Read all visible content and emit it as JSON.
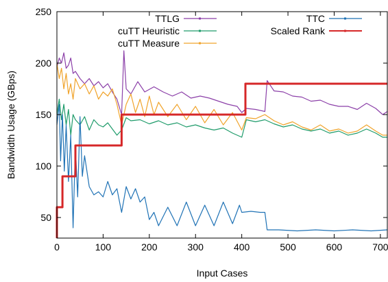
{
  "chart_data": {
    "type": "line",
    "title": "",
    "xlabel": "Input Cases",
    "ylabel": "Bandwidth Usage (GBps)",
    "xlim": [
      0,
      715
    ],
    "ylim": [
      30,
      250
    ],
    "x_ticks": [
      0,
      100,
      200,
      300,
      400,
      500,
      600,
      700
    ],
    "y_ticks": [
      50,
      100,
      150,
      200,
      250
    ],
    "grid": false,
    "legend_position": "top",
    "series": [
      {
        "name": "TTLG",
        "color": "#8b3fa8",
        "points": [
          [
            0,
            196
          ],
          [
            5,
            205
          ],
          [
            10,
            200
          ],
          [
            15,
            210
          ],
          [
            20,
            195
          ],
          [
            25,
            198
          ],
          [
            30,
            205
          ],
          [
            35,
            190
          ],
          [
            40,
            192
          ],
          [
            50,
            185
          ],
          [
            60,
            180
          ],
          [
            70,
            185
          ],
          [
            80,
            178
          ],
          [
            90,
            182
          ],
          [
            100,
            176
          ],
          [
            110,
            180
          ],
          [
            120,
            172
          ],
          [
            130,
            165
          ],
          [
            140,
            150
          ],
          [
            145,
            212
          ],
          [
            150,
            175
          ],
          [
            160,
            170
          ],
          [
            175,
            182
          ],
          [
            190,
            172
          ],
          [
            210,
            177
          ],
          [
            230,
            172
          ],
          [
            250,
            168
          ],
          [
            270,
            172
          ],
          [
            290,
            166
          ],
          [
            310,
            168
          ],
          [
            330,
            166
          ],
          [
            350,
            163
          ],
          [
            370,
            160
          ],
          [
            390,
            158
          ],
          [
            400,
            152
          ],
          [
            410,
            156
          ],
          [
            430,
            155
          ],
          [
            450,
            153
          ],
          [
            455,
            183
          ],
          [
            470,
            173
          ],
          [
            490,
            172
          ],
          [
            510,
            168
          ],
          [
            530,
            167
          ],
          [
            550,
            163
          ],
          [
            570,
            164
          ],
          [
            590,
            160
          ],
          [
            610,
            158
          ],
          [
            630,
            158
          ],
          [
            650,
            155
          ],
          [
            670,
            161
          ],
          [
            690,
            156
          ],
          [
            705,
            150
          ],
          [
            715,
            153
          ]
        ]
      },
      {
        "name": "cuTT Heuristic",
        "color": "#1e9b6a",
        "points": [
          [
            0,
            150
          ],
          [
            5,
            165
          ],
          [
            10,
            145
          ],
          [
            15,
            160
          ],
          [
            20,
            140
          ],
          [
            25,
            155
          ],
          [
            30,
            130
          ],
          [
            35,
            150
          ],
          [
            40,
            145
          ],
          [
            50,
            140
          ],
          [
            60,
            148
          ],
          [
            70,
            135
          ],
          [
            80,
            145
          ],
          [
            90,
            140
          ],
          [
            100,
            138
          ],
          [
            110,
            142
          ],
          [
            120,
            136
          ],
          [
            130,
            130
          ],
          [
            140,
            135
          ],
          [
            150,
            147
          ],
          [
            160,
            144
          ],
          [
            180,
            145
          ],
          [
            200,
            141
          ],
          [
            220,
            144
          ],
          [
            240,
            140
          ],
          [
            260,
            142
          ],
          [
            280,
            138
          ],
          [
            300,
            140
          ],
          [
            320,
            137
          ],
          [
            340,
            135
          ],
          [
            360,
            137
          ],
          [
            380,
            132
          ],
          [
            400,
            128
          ],
          [
            410,
            145
          ],
          [
            430,
            143
          ],
          [
            450,
            145
          ],
          [
            470,
            141
          ],
          [
            490,
            138
          ],
          [
            510,
            140
          ],
          [
            530,
            136
          ],
          [
            550,
            134
          ],
          [
            570,
            136
          ],
          [
            590,
            132
          ],
          [
            610,
            134
          ],
          [
            630,
            130
          ],
          [
            650,
            132
          ],
          [
            670,
            136
          ],
          [
            690,
            132
          ],
          [
            705,
            128
          ],
          [
            715,
            128
          ]
        ]
      },
      {
        "name": "cuTT Measure",
        "color": "#f0a32a",
        "points": [
          [
            0,
            200
          ],
          [
            5,
            185
          ],
          [
            10,
            195
          ],
          [
            15,
            175
          ],
          [
            20,
            190
          ],
          [
            25,
            170
          ],
          [
            30,
            180
          ],
          [
            35,
            165
          ],
          [
            40,
            185
          ],
          [
            50,
            175
          ],
          [
            60,
            180
          ],
          [
            70,
            170
          ],
          [
            80,
            178
          ],
          [
            90,
            165
          ],
          [
            100,
            172
          ],
          [
            110,
            168
          ],
          [
            120,
            175
          ],
          [
            130,
            160
          ],
          [
            140,
            140
          ],
          [
            150,
            160
          ],
          [
            160,
            170
          ],
          [
            170,
            152
          ],
          [
            180,
            165
          ],
          [
            190,
            148
          ],
          [
            200,
            168
          ],
          [
            210,
            150
          ],
          [
            220,
            162
          ],
          [
            240,
            148
          ],
          [
            260,
            160
          ],
          [
            280,
            145
          ],
          [
            300,
            158
          ],
          [
            320,
            142
          ],
          [
            340,
            155
          ],
          [
            360,
            140
          ],
          [
            380,
            152
          ],
          [
            400,
            135
          ],
          [
            410,
            147
          ],
          [
            430,
            146
          ],
          [
            450,
            150
          ],
          [
            470,
            144
          ],
          [
            490,
            140
          ],
          [
            510,
            143
          ],
          [
            530,
            138
          ],
          [
            550,
            135
          ],
          [
            570,
            140
          ],
          [
            590,
            134
          ],
          [
            610,
            136
          ],
          [
            630,
            132
          ],
          [
            650,
            134
          ],
          [
            670,
            140
          ],
          [
            690,
            134
          ],
          [
            705,
            130
          ],
          [
            715,
            130
          ]
        ]
      },
      {
        "name": "TTC",
        "color": "#1f72b5",
        "points": [
          [
            0,
            140
          ],
          [
            5,
            160
          ],
          [
            8,
            105
          ],
          [
            12,
            150
          ],
          [
            16,
            95
          ],
          [
            20,
            140
          ],
          [
            25,
            85
          ],
          [
            30,
            130
          ],
          [
            35,
            40
          ],
          [
            40,
            120
          ],
          [
            45,
            70
          ],
          [
            50,
            148
          ],
          [
            55,
            90
          ],
          [
            60,
            110
          ],
          [
            70,
            80
          ],
          [
            80,
            72
          ],
          [
            90,
            75
          ],
          [
            100,
            70
          ],
          [
            110,
            85
          ],
          [
            120,
            72
          ],
          [
            130,
            78
          ],
          [
            140,
            55
          ],
          [
            150,
            80
          ],
          [
            160,
            68
          ],
          [
            170,
            78
          ],
          [
            180,
            65
          ],
          [
            190,
            70
          ],
          [
            200,
            48
          ],
          [
            210,
            55
          ],
          [
            220,
            42
          ],
          [
            240,
            60
          ],
          [
            260,
            42
          ],
          [
            280,
            65
          ],
          [
            300,
            42
          ],
          [
            320,
            62
          ],
          [
            340,
            42
          ],
          [
            360,
            65
          ],
          [
            380,
            44
          ],
          [
            395,
            62
          ],
          [
            400,
            55
          ],
          [
            420,
            56
          ],
          [
            440,
            55
          ],
          [
            450,
            55
          ],
          [
            455,
            38
          ],
          [
            480,
            38
          ],
          [
            520,
            37
          ],
          [
            560,
            38
          ],
          [
            600,
            37
          ],
          [
            640,
            38
          ],
          [
            680,
            37
          ],
          [
            715,
            38
          ]
        ]
      },
      {
        "name": "Scaled Rank",
        "color": "#d62728",
        "points": [
          [
            0,
            30
          ],
          [
            0,
            60
          ],
          [
            12,
            60
          ],
          [
            12,
            90
          ],
          [
            40,
            90
          ],
          [
            40,
            120
          ],
          [
            140,
            120
          ],
          [
            140,
            150
          ],
          [
            408,
            150
          ],
          [
            408,
            180
          ],
          [
            715,
            180
          ]
        ]
      }
    ]
  }
}
